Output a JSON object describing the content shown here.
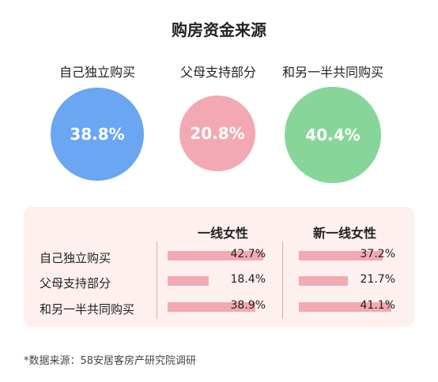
{
  "title": "购房资金来源",
  "colors": {
    "circle_self": "#6aa6f2",
    "circle_parents": "#f2a9b4",
    "circle_joint": "#88d59a",
    "bar": "#f2a9b1",
    "panel_bg": "#fdf0ee"
  },
  "chart_data": [
    {
      "type": "bubble",
      "title": "购房资金来源",
      "categories": [
        "自己独立购买",
        "父母支持部分",
        "和另一半共同购买"
      ],
      "values": [
        38.8,
        20.8,
        40.4
      ],
      "value_labels": [
        "38.8%",
        "20.8%",
        "40.4%"
      ]
    },
    {
      "type": "bar",
      "orientation": "horizontal",
      "categories": [
        "自己独立购买",
        "父母支持部分",
        "和另一半共同购买"
      ],
      "series": [
        {
          "name": "一线女性",
          "values": [
            42.7,
            18.4,
            38.9
          ],
          "labels": [
            "42.7%",
            "18.4%",
            "38.9%"
          ]
        },
        {
          "name": "新一线女性",
          "values": [
            37.2,
            21.7,
            41.1
          ],
          "labels": [
            "37.2%",
            "21.7%",
            "41.1%"
          ]
        }
      ]
    }
  ],
  "footnote": "*数据来源：58安居客房产研究院调研"
}
